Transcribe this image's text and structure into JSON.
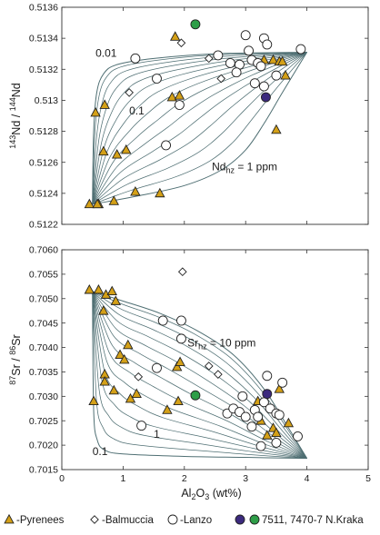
{
  "chart_data": [
    {
      "type": "scatter",
      "xlim": [
        0,
        5
      ],
      "ylim": [
        0.5122,
        0.5136
      ],
      "xticks": [
        "0",
        "1",
        "2",
        "3",
        "4",
        "5"
      ],
      "yticks": [
        "0.5122",
        "0.5124",
        "0.5126",
        "0.5128",
        "0.513",
        "0.5132",
        "0.5134",
        "0.5136"
      ],
      "show_x_tick_labels": false,
      "ylabel_parts": {
        "sup1": "143",
        "base1": "Nd / ",
        "sup2": "144",
        "base2": "Nd"
      },
      "annotations": [
        {
          "id": "a001",
          "text": "0.01",
          "x": 0.55,
          "y": 0.51328
        },
        {
          "id": "a01",
          "text": "0.1",
          "x": 1.1,
          "y": 0.51291
        },
        {
          "id": "ahz",
          "base": "Nd",
          "sub": "hz",
          "rest": " = 1 ppm",
          "x": 2.45,
          "y": 0.51255
        }
      ],
      "mixing_model": {
        "start": [
          0.5,
          0.51233
        ],
        "end": [
          4.0,
          0.51331
        ],
        "outer_upper": [
          [
            0.5,
            0.51233
          ],
          [
            0.52,
            0.5128
          ],
          [
            0.57,
            0.51305
          ],
          [
            0.68,
            0.51317
          ],
          [
            0.9,
            0.51323
          ],
          [
            1.5,
            0.51327
          ],
          [
            2.5,
            0.5133
          ],
          [
            4.0,
            0.51331
          ]
        ],
        "outer_lower": [
          [
            0.5,
            0.51233
          ],
          [
            1.2,
            0.51238
          ],
          [
            2.0,
            0.51245
          ],
          [
            2.6,
            0.51255
          ],
          [
            3.0,
            0.51268
          ],
          [
            3.3,
            0.51285
          ],
          [
            3.6,
            0.51305
          ],
          [
            4.0,
            0.51331
          ]
        ],
        "curve_count": 14,
        "color": "#4f6f73"
      },
      "series": [
        {
          "name": "Pyrenees",
          "marker": "triangle",
          "color": "#d4a017",
          "points": [
            [
              0.45,
              0.51233
            ],
            [
              0.6,
              0.51233
            ],
            [
              0.58,
              0.51233
            ],
            [
              0.85,
              0.51235
            ],
            [
              0.55,
              0.51292
            ],
            [
              0.7,
              0.51297
            ],
            [
              0.68,
              0.51267
            ],
            [
              0.9,
              0.51265
            ],
            [
              1.05,
              0.51268
            ],
            [
              1.2,
              0.51241
            ],
            [
              1.6,
              0.5124
            ],
            [
              1.8,
              0.51302
            ],
            [
              1.92,
              0.51303
            ],
            [
              1.85,
              0.51341
            ],
            [
              3.3,
              0.51326
            ],
            [
              3.45,
              0.51326
            ],
            [
              3.55,
              0.51325
            ],
            [
              3.6,
              0.51325
            ],
            [
              3.65,
              0.51316
            ],
            [
              3.5,
              0.51281
            ]
          ]
        },
        {
          "name": "Balmuccia",
          "marker": "diamond",
          "color": "#ffffff",
          "points": [
            [
              1.95,
              0.51337
            ],
            [
              1.1,
              0.51305
            ],
            [
              2.4,
              0.51327
            ],
            [
              2.6,
              0.51314
            ]
          ]
        },
        {
          "name": "Lanzo",
          "marker": "circle",
          "color": "#ffffff",
          "points": [
            [
              1.2,
              0.51327
            ],
            [
              1.55,
              0.51314
            ],
            [
              1.7,
              0.51271
            ],
            [
              1.92,
              0.51297
            ],
            [
              2.9,
              0.51323
            ],
            [
              3.0,
              0.51342
            ],
            [
              3.05,
              0.51332
            ],
            [
              3.1,
              0.51326
            ],
            [
              3.2,
              0.51324
            ],
            [
              3.3,
              0.5134
            ],
            [
              3.35,
              0.51336
            ],
            [
              3.15,
              0.51311
            ],
            [
              3.3,
              0.51309
            ],
            [
              3.5,
              0.51316
            ],
            [
              2.55,
              0.51329
            ],
            [
              2.75,
              0.51324
            ],
            [
              2.85,
              0.51318
            ],
            [
              3.9,
              0.51333
            ],
            [
              3.25,
              0.51322
            ]
          ]
        },
        {
          "name": "N.Kraka 7511",
          "marker": "circle",
          "color": "#2e9e48",
          "points": [
            [
              2.18,
              0.51349
            ]
          ]
        },
        {
          "name": "N.Kraka 7470-7",
          "marker": "circle",
          "color": "#3c2a7e",
          "points": [
            [
              3.33,
              0.51302
            ]
          ]
        }
      ]
    },
    {
      "type": "scatter",
      "xlim": [
        0,
        5
      ],
      "ylim": [
        0.7015,
        0.706
      ],
      "xticks": [
        "0",
        "1",
        "2",
        "3",
        "4",
        "5"
      ],
      "yticks": [
        "0.7015",
        "0.7020",
        "0.7025",
        "0.7030",
        "0.7035",
        "0.7040",
        "0.7045",
        "0.7050",
        "0.7055",
        "0.7060"
      ],
      "show_x_tick_labels": true,
      "xlabel_parts": {
        "base1": "Al",
        "sub": "2",
        "base2": "O",
        "sub2": "3",
        "rest": " (wt%)"
      },
      "ylabel_parts": {
        "sup1": "87",
        "base1": "Sr / ",
        "sup2": "86",
        "base2": "Sr"
      },
      "annotations": [
        {
          "id": "b01",
          "text": "0.1",
          "x": 0.5,
          "y": 0.7018
        },
        {
          "id": "b1",
          "text": "1",
          "x": 1.5,
          "y": 0.70215
        },
        {
          "id": "bhz",
          "base": "Sr",
          "sub": "hz",
          "rest": " = 10 ppm",
          "x": 2.05,
          "y": 0.70402
        }
      ],
      "mixing_model": {
        "start": [
          0.5,
          0.70515
        ],
        "end": [
          4.0,
          0.70173
        ],
        "outer_upper": [
          [
            0.5,
            0.70515
          ],
          [
            1.0,
            0.70495
          ],
          [
            1.6,
            0.7047
          ],
          [
            2.2,
            0.70435
          ],
          [
            2.8,
            0.70385
          ],
          [
            3.3,
            0.70315
          ],
          [
            3.7,
            0.70235
          ],
          [
            4.0,
            0.70173
          ]
        ],
        "outer_lower": [
          [
            0.5,
            0.70515
          ],
          [
            0.52,
            0.7027
          ],
          [
            0.58,
            0.7021
          ],
          [
            0.7,
            0.7019
          ],
          [
            1.0,
            0.70182
          ],
          [
            2.0,
            0.70177
          ],
          [
            3.0,
            0.70175
          ],
          [
            4.0,
            0.70173
          ]
        ],
        "curve_count": 14,
        "color": "#4f6f73"
      },
      "series": [
        {
          "name": "Pyrenees",
          "marker": "triangle",
          "color": "#d4a017",
          "points": [
            [
              0.45,
              0.70518
            ],
            [
              0.6,
              0.70518
            ],
            [
              0.72,
              0.70508
            ],
            [
              0.82,
              0.70515
            ],
            [
              0.88,
              0.70495
            ],
            [
              0.68,
              0.70475
            ],
            [
              0.7,
              0.70345
            ],
            [
              0.7,
              0.7033
            ],
            [
              0.52,
              0.7029
            ],
            [
              0.85,
              0.70312
            ],
            [
              0.95,
              0.70385
            ],
            [
              1.08,
              0.70405
            ],
            [
              1.02,
              0.70375
            ],
            [
              1.12,
              0.70295
            ],
            [
              1.22,
              0.70305
            ],
            [
              1.88,
              0.7036
            ],
            [
              1.93,
              0.7037
            ],
            [
              1.9,
              0.7029
            ],
            [
              1.72,
              0.70272
            ],
            [
              3.2,
              0.7029
            ],
            [
              3.25,
              0.7025
            ],
            [
              3.35,
              0.7022
            ],
            [
              3.45,
              0.70235
            ],
            [
              3.5,
              0.70225
            ],
            [
              3.55,
              0.70315
            ],
            [
              3.7,
              0.70245
            ]
          ]
        },
        {
          "name": "Balmuccia",
          "marker": "diamond",
          "color": "#ffffff",
          "points": [
            [
              1.97,
              0.70555
            ],
            [
              2.4,
              0.70362
            ],
            [
              2.55,
              0.70345
            ],
            [
              1.25,
              0.7034
            ]
          ]
        },
        {
          "name": "Lanzo",
          "marker": "circle",
          "color": "#ffffff",
          "points": [
            [
              1.3,
              0.7024
            ],
            [
              1.55,
              0.70358
            ],
            [
              1.65,
              0.70455
            ],
            [
              1.95,
              0.70455
            ],
            [
              1.95,
              0.70418
            ],
            [
              2.7,
              0.70265
            ],
            [
              2.8,
              0.70275
            ],
            [
              2.9,
              0.70268
            ],
            [
              2.95,
              0.703
            ],
            [
              3.0,
              0.70258
            ],
            [
              3.1,
              0.70238
            ],
            [
              3.15,
              0.70272
            ],
            [
              3.2,
              0.70258
            ],
            [
              3.25,
              0.70198
            ],
            [
              3.3,
              0.70288
            ],
            [
              3.35,
              0.70342
            ],
            [
              3.4,
              0.70275
            ],
            [
              3.5,
              0.70265
            ],
            [
              3.55,
              0.70262
            ],
            [
              3.6,
              0.70328
            ],
            [
              3.85,
              0.70218
            ],
            [
              3.5,
              0.70205
            ]
          ]
        },
        {
          "name": "N.Kraka 7511",
          "marker": "circle",
          "color": "#2e9e48",
          "points": [
            [
              2.18,
              0.70302
            ]
          ]
        },
        {
          "name": "N.Kraka 7470-7",
          "marker": "circle",
          "color": "#3c2a7e",
          "points": [
            [
              3.35,
              0.70305
            ]
          ]
        }
      ]
    }
  ],
  "legend": [
    {
      "marker": "triangle",
      "color": "#d4a017",
      "label": "-Pyrenees"
    },
    {
      "marker": "diamond",
      "color": "#ffffff",
      "label": "-Balmuccia"
    },
    {
      "marker": "circle",
      "color": "#ffffff",
      "label": "-Lanzo"
    },
    {
      "marker": "circle",
      "color": "#3c2a7e",
      "label": ""
    },
    {
      "marker": "circle",
      "color": "#2e9e48",
      "label": "7511, 7470-7 N.Kraka"
    }
  ]
}
